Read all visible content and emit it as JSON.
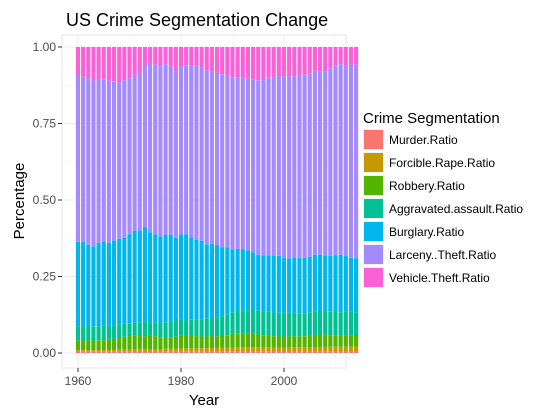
{
  "chart_data": {
    "type": "bar",
    "stacked": true,
    "title": "US Crime Segmentation Change",
    "xlabel": "Year",
    "ylabel": "Percentage",
    "xlim": [
      1960,
      2014
    ],
    "ylim": [
      0,
      1
    ],
    "x_ticks": [
      1960,
      1980,
      2000
    ],
    "y_ticks": [
      "0.00",
      "0.25",
      "0.50",
      "0.75",
      "1.00"
    ],
    "grid": true,
    "legend_position": "right",
    "legend_title": "Crime Segmentation",
    "x": [
      1960,
      1961,
      1962,
      1963,
      1964,
      1965,
      1966,
      1967,
      1968,
      1969,
      1970,
      1971,
      1972,
      1973,
      1974,
      1975,
      1976,
      1977,
      1978,
      1979,
      1980,
      1981,
      1982,
      1983,
      1984,
      1985,
      1986,
      1987,
      1988,
      1989,
      1990,
      1991,
      1992,
      1993,
      1994,
      1995,
      1996,
      1997,
      1998,
      1999,
      2000,
      2001,
      2002,
      2003,
      2004,
      2005,
      2006,
      2007,
      2008,
      2009,
      2010,
      2011,
      2012,
      2013,
      2014
    ],
    "series": [
      {
        "name": "Murder.Ratio",
        "color": "#F8766D",
        "values": [
          0.0045,
          0.0045,
          0.0044,
          0.0043,
          0.0042,
          0.0041,
          0.004,
          0.004,
          0.0042,
          0.0043,
          0.0045,
          0.0047,
          0.0048,
          0.005,
          0.005,
          0.0051,
          0.005,
          0.0052,
          0.0053,
          0.0053,
          0.0056,
          0.0056,
          0.0055,
          0.0053,
          0.0053,
          0.0052,
          0.0054,
          0.0054,
          0.0054,
          0.0056,
          0.006,
          0.0062,
          0.0062,
          0.0064,
          0.0063,
          0.0059,
          0.0055,
          0.0054,
          0.005,
          0.0048,
          0.0049,
          0.0049,
          0.005,
          0.0051,
          0.0051,
          0.0052,
          0.0054,
          0.0055,
          0.0055,
          0.0054,
          0.0052,
          0.0051,
          0.0052,
          0.0052,
          0.0052
        ]
      },
      {
        "name": "Forcible.Rape.Ratio",
        "color": "#C49A00",
        "values": [
          0.005,
          0.005,
          0.0051,
          0.0052,
          0.0055,
          0.0058,
          0.006,
          0.0062,
          0.0064,
          0.0066,
          0.0068,
          0.007,
          0.0075,
          0.0078,
          0.008,
          0.008,
          0.008,
          0.0085,
          0.009,
          0.0093,
          0.0095,
          0.0095,
          0.0098,
          0.01,
          0.0105,
          0.0108,
          0.011,
          0.011,
          0.0112,
          0.0115,
          0.012,
          0.0122,
          0.0125,
          0.0128,
          0.0128,
          0.0127,
          0.0128,
          0.013,
          0.013,
          0.0132,
          0.0134,
          0.0135,
          0.0137,
          0.0138,
          0.014,
          0.0142,
          0.0143,
          0.0145,
          0.0148,
          0.015,
          0.0152,
          0.0155,
          0.0158,
          0.016,
          0.0162
        ]
      },
      {
        "name": "Robbery.Ratio",
        "color": "#53B400",
        "values": [
          0.032,
          0.0315,
          0.031,
          0.0312,
          0.032,
          0.0325,
          0.033,
          0.036,
          0.04,
          0.042,
          0.044,
          0.045,
          0.043,
          0.042,
          0.043,
          0.042,
          0.038,
          0.037,
          0.0375,
          0.0385,
          0.041,
          0.042,
          0.042,
          0.04,
          0.038,
          0.038,
          0.039,
          0.038,
          0.039,
          0.041,
          0.044,
          0.046,
          0.046,
          0.045,
          0.044,
          0.042,
          0.04,
          0.039,
          0.037,
          0.036,
          0.036,
          0.036,
          0.036,
          0.036,
          0.036,
          0.038,
          0.04,
          0.041,
          0.04,
          0.038,
          0.037,
          0.036,
          0.036,
          0.036,
          0.035
        ]
      },
      {
        "name": "Aggravated.assault.Ratio",
        "color": "#00C094",
        "values": [
          0.046,
          0.046,
          0.046,
          0.045,
          0.046,
          0.047,
          0.048,
          0.045,
          0.044,
          0.044,
          0.042,
          0.042,
          0.045,
          0.047,
          0.044,
          0.044,
          0.047,
          0.05,
          0.053,
          0.053,
          0.052,
          0.049,
          0.051,
          0.053,
          0.057,
          0.058,
          0.062,
          0.062,
          0.065,
          0.067,
          0.071,
          0.071,
          0.075,
          0.075,
          0.077,
          0.077,
          0.077,
          0.077,
          0.077,
          0.077,
          0.079,
          0.078,
          0.077,
          0.076,
          0.076,
          0.077,
          0.078,
          0.078,
          0.077,
          0.078,
          0.08,
          0.079,
          0.08,
          0.079,
          0.079
        ]
      },
      {
        "name": "Burglary.Ratio",
        "color": "#00B6EB",
        "values": [
          0.276,
          0.276,
          0.267,
          0.263,
          0.273,
          0.276,
          0.269,
          0.277,
          0.279,
          0.28,
          0.291,
          0.3,
          0.3,
          0.311,
          0.295,
          0.288,
          0.283,
          0.285,
          0.282,
          0.27,
          0.28,
          0.282,
          0.27,
          0.261,
          0.256,
          0.242,
          0.24,
          0.236,
          0.225,
          0.22,
          0.204,
          0.204,
          0.2,
          0.196,
          0.188,
          0.183,
          0.184,
          0.185,
          0.186,
          0.186,
          0.179,
          0.178,
          0.18,
          0.181,
          0.181,
          0.182,
          0.187,
          0.186,
          0.185,
          0.186,
          0.187,
          0.19,
          0.184,
          0.179,
          0.179
        ]
      },
      {
        "name": "Larceny..Theft.Ratio",
        "color": "#A58AFF",
        "values": [
          0.545,
          0.54,
          0.545,
          0.542,
          0.535,
          0.533,
          0.53,
          0.52,
          0.51,
          0.515,
          0.51,
          0.51,
          0.515,
          0.528,
          0.55,
          0.555,
          0.56,
          0.558,
          0.55,
          0.543,
          0.548,
          0.552,
          0.56,
          0.57,
          0.566,
          0.568,
          0.563,
          0.562,
          0.565,
          0.562,
          0.559,
          0.56,
          0.562,
          0.56,
          0.564,
          0.571,
          0.572,
          0.579,
          0.583,
          0.586,
          0.595,
          0.596,
          0.597,
          0.6,
          0.602,
          0.603,
          0.608,
          0.606,
          0.606,
          0.621,
          0.628,
          0.633,
          0.632,
          0.64,
          0.644
        ]
      },
      {
        "name": "Vehicle.Theft.Ratio",
        "color": "#FB61D7",
        "values": [
          0.0915,
          0.097,
          0.1015,
          0.1093,
          0.1063,
          0.1053,
          0.11,
          0.1118,
          0.1164,
          0.1081,
          0.1017,
          0.0913,
          0.0832,
          0.0622,
          0.0555,
          0.0579,
          0.0587,
          0.0563,
          0.063,
          0.0806,
          0.0639,
          0.0597,
          0.0617,
          0.0607,
          0.0672,
          0.0771,
          0.0796,
          0.0844,
          0.0889,
          0.0929,
          0.1,
          0.099,
          0.0983,
          0.1023,
          0.1051,
          0.1087,
          0.1081,
          0.1007,
          0.0984,
          0.0954,
          0.0958,
          0.097,
          0.0956,
          0.0935,
          0.0913,
          0.0879,
          0.0785,
          0.0804,
          0.0822,
          0.0708,
          0.0619,
          0.0569,
          0.06,
          0.0589,
          0.0577
        ]
      }
    ]
  }
}
